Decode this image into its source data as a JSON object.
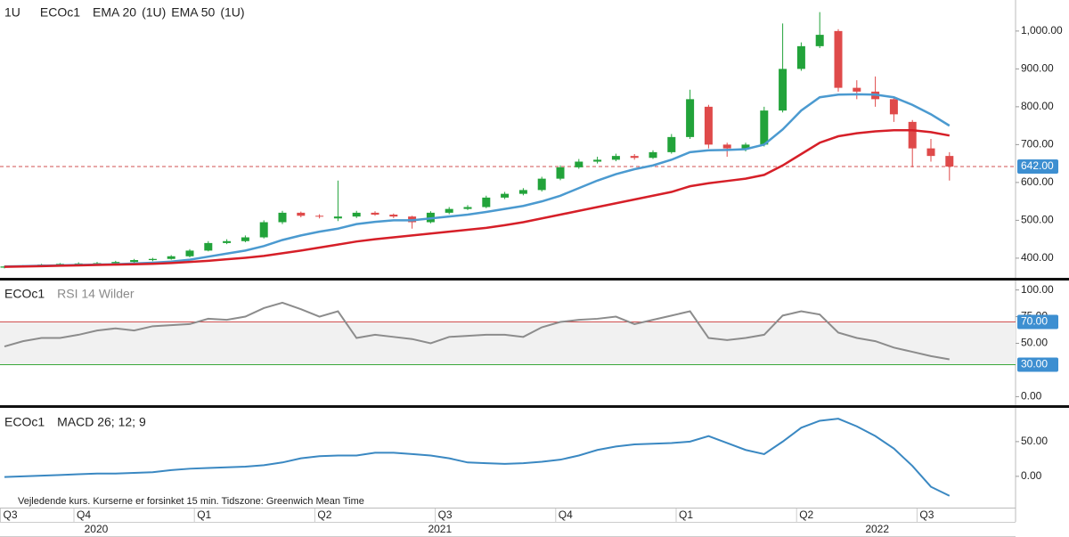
{
  "chart_data": [
    {
      "type": "candlestick",
      "interval": "1U",
      "symbol": "ECOc1",
      "up_color": "#22a33a",
      "down_color": "#df4a4a",
      "open": [
        375,
        378,
        380,
        383,
        385,
        386,
        387,
        390,
        395,
        398,
        405,
        420,
        440,
        445,
        455,
        495,
        520,
        512,
        505,
        510,
        520,
        515,
        510,
        495,
        520,
        530,
        535,
        560,
        570,
        580,
        610,
        640,
        655,
        660,
        670,
        665,
        680,
        720,
        800,
        700,
        690,
        700,
        790,
        900,
        960,
        1000,
        850,
        840,
        820,
        760,
        690,
        670
      ],
      "high": [
        380,
        382,
        385,
        387,
        389,
        390,
        393,
        398,
        401,
        408,
        424,
        445,
        450,
        460,
        500,
        525,
        523,
        516,
        605,
        525,
        524,
        518,
        512,
        524,
        535,
        540,
        565,
        575,
        585,
        615,
        645,
        662,
        668,
        676,
        675,
        685,
        728,
        845,
        805,
        705,
        705,
        800,
        1020,
        970,
        1050,
        1005,
        870,
        880,
        825,
        765,
        715,
        680
      ],
      "low": [
        373,
        376,
        378,
        381,
        383,
        384,
        385,
        388,
        392,
        396,
        402,
        418,
        437,
        442,
        452,
        490,
        508,
        505,
        498,
        506,
        512,
        506,
        478,
        492,
        516,
        527,
        532,
        556,
        566,
        576,
        606,
        636,
        650,
        656,
        660,
        662,
        676,
        715,
        690,
        668,
        682,
        695,
        785,
        895,
        955,
        840,
        820,
        800,
        760,
        640,
        655,
        605
      ],
      "close": [
        378,
        380,
        383,
        385,
        386,
        387,
        390,
        395,
        398,
        405,
        420,
        440,
        445,
        455,
        495,
        520,
        512,
        510,
        510,
        520,
        515,
        510,
        495,
        520,
        530,
        535,
        560,
        570,
        580,
        610,
        640,
        655,
        660,
        670,
        665,
        680,
        720,
        820,
        700,
        690,
        700,
        790,
        900,
        960,
        990,
        850,
        840,
        820,
        780,
        690,
        670,
        642
      ],
      "series": [
        {
          "name": "EMA 20",
          "interval_label": "(1U)",
          "color": "#4b9ad0",
          "values": [
            378,
            379,
            380,
            381,
            382,
            383,
            384,
            386,
            388,
            391,
            396,
            404,
            412,
            420,
            432,
            448,
            460,
            470,
            478,
            490,
            496,
            500,
            500,
            505,
            510,
            515,
            522,
            530,
            538,
            550,
            565,
            585,
            605,
            622,
            635,
            645,
            660,
            680,
            685,
            686,
            688,
            700,
            740,
            790,
            825,
            832,
            833,
            832,
            825,
            805,
            780,
            750
          ]
        },
        {
          "name": "EMA 50",
          "interval_label": "(1U)",
          "color": "#d61f28",
          "values": [
            377,
            378,
            379,
            380,
            381,
            382,
            383,
            384,
            385,
            387,
            390,
            393,
            397,
            401,
            406,
            413,
            420,
            428,
            436,
            444,
            450,
            455,
            460,
            465,
            470,
            475,
            480,
            487,
            495,
            505,
            515,
            525,
            535,
            545,
            555,
            565,
            575,
            590,
            598,
            604,
            610,
            620,
            645,
            675,
            705,
            722,
            730,
            735,
            738,
            738,
            733,
            724
          ]
        }
      ],
      "last_price": {
        "value": 642,
        "label": "642.00"
      },
      "ylim": [
        348,
        1082
      ],
      "yticks": [
        {
          "value": 400,
          "label": "400.00"
        },
        {
          "value": 500,
          "label": "500.00"
        },
        {
          "value": 600,
          "label": "600.00"
        },
        {
          "value": 700,
          "label": "700.00"
        },
        {
          "value": 800,
          "label": "800.00"
        },
        {
          "value": 900,
          "label": "900.00"
        },
        {
          "value": 1000,
          "label": "1,000.00"
        }
      ]
    },
    {
      "type": "line",
      "symbol": "ECOc1",
      "title": "RSI 14 Wilder",
      "color": "#8c8c8c",
      "values": [
        47,
        52,
        55,
        55,
        58,
        62,
        64,
        62,
        66,
        67,
        68,
        73,
        72,
        75,
        83,
        88,
        82,
        75,
        80,
        55,
        58,
        56,
        54,
        50,
        56,
        57,
        58,
        58,
        56,
        65,
        70,
        72,
        73,
        75,
        68,
        72,
        76,
        80,
        55,
        53,
        55,
        58,
        76,
        80,
        77,
        60,
        55,
        52,
        46,
        42,
        38,
        35
      ],
      "levels": [
        {
          "value": 70,
          "label": "70.00",
          "color": "#d05050"
        },
        {
          "value": 30,
          "label": "30.00",
          "color": "#3aa83a"
        }
      ],
      "ylim": [
        -8,
        108
      ],
      "yticks": [
        {
          "value": 0,
          "label": "0.00"
        },
        {
          "value": 50,
          "label": "50.00"
        },
        {
          "value": 75,
          "label": "75.00"
        },
        {
          "value": 100,
          "label": "100.00"
        }
      ]
    },
    {
      "type": "line",
      "symbol": "ECOc1",
      "title": "MACD 26; 12; 9",
      "color": "#3a88c2",
      "values": [
        -1,
        0,
        1,
        2,
        3,
        4,
        4,
        5,
        6,
        9,
        11,
        12,
        13,
        14,
        16,
        20,
        26,
        29,
        30,
        30,
        34,
        34,
        32,
        30,
        26,
        20,
        19,
        18,
        19,
        21,
        24,
        30,
        38,
        43,
        46,
        47,
        48,
        50,
        58,
        48,
        38,
        32,
        50,
        70,
        80,
        83,
        72,
        58,
        40,
        15,
        -15,
        -28
      ],
      "note": "Vejledende kurs. Kurserne er forsinket 15 min.   Tidszone: Greenwich Mean Time",
      "ylim": [
        -45,
        96
      ],
      "yticks": [
        {
          "value": 0,
          "label": "0.00"
        },
        {
          "value": 50,
          "label": "50.00"
        }
      ],
      "xticks": [
        {
          "value": -0.25,
          "label": "Q3"
        },
        {
          "value": 3.75,
          "label": "Q4"
        },
        {
          "value": 10.25,
          "label": "Q1"
        },
        {
          "value": 16.75,
          "label": "Q2"
        },
        {
          "value": 23.25,
          "label": "Q3"
        },
        {
          "value": 29.75,
          "label": "Q4"
        },
        {
          "value": 36.25,
          "label": "Q1"
        },
        {
          "value": 42.75,
          "label": "Q2"
        },
        {
          "value": 49.25,
          "label": "Q3"
        }
      ],
      "year_ticks": [
        {
          "value": 4.95,
          "label": "2020"
        },
        {
          "value": 23.5,
          "label": "2021"
        },
        {
          "value": 47.1,
          "label": "2022"
        }
      ]
    }
  ]
}
